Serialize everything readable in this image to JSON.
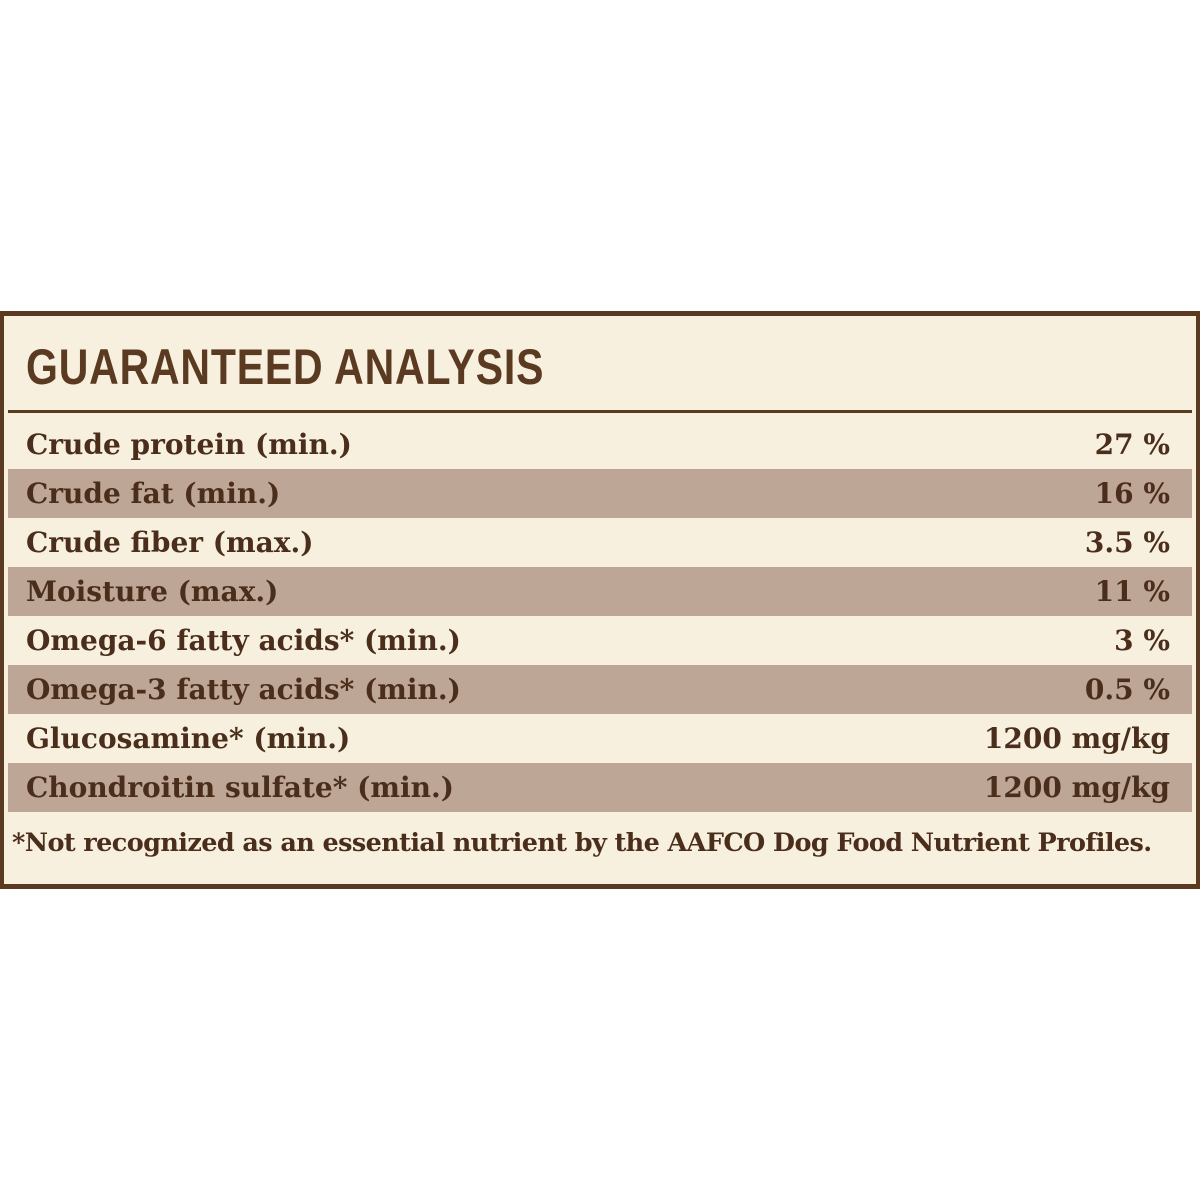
{
  "title": "GUARANTEED ANALYSIS",
  "table": {
    "rows": [
      [
        "Crude protein (min.)",
        "27 %"
      ],
      [
        "Crude fat (min.)",
        "16 %"
      ],
      [
        "Crude fiber (max.)",
        "3.5 %"
      ],
      [
        "Moisture (max.)",
        "11 %"
      ],
      [
        "Omega-6 fatty acids* (min.)",
        "3 %"
      ],
      [
        "Omega-3 fatty acids* (min.)",
        "0.5 %"
      ],
      [
        "Glucosamine* (min.)",
        "1200 mg/kg"
      ],
      [
        "Chondroitin sulfate* (min.)",
        "1200 mg/kg"
      ]
    ]
  },
  "footnote": "*Not recognized as an essential nutrient by the AAFCO Dog Food Nutrient Profiles."
}
